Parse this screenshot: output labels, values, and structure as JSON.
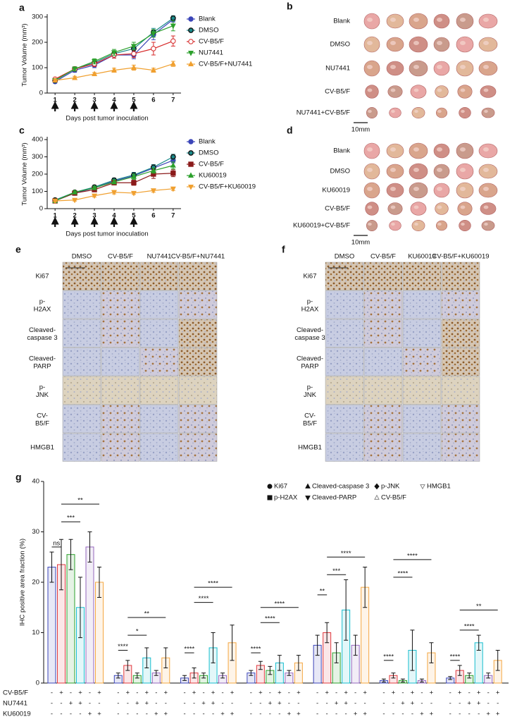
{
  "chart_data": [
    {
      "type": "line",
      "panel": "a",
      "y_label": "Tumor Volume (mm³)",
      "x_label": "Days post tumor inoculation",
      "x": [
        1,
        2,
        3,
        4,
        5,
        6,
        7
      ],
      "xlim": [
        0.6,
        7.4
      ],
      "xticks": [
        1,
        2,
        3,
        4,
        5,
        6,
        7
      ],
      "ylim": [
        0,
        300
      ],
      "yticks": [
        0,
        100,
        200,
        300
      ],
      "series": [
        {
          "name": "Blank",
          "color": "#3b45b8",
          "marker": "circle",
          "values": [
            45,
            90,
            110,
            150,
            150,
            230,
            290
          ],
          "errors": [
            5,
            8,
            10,
            12,
            15,
            20,
            10
          ]
        },
        {
          "name": "DMSO",
          "color": "#1a8a8a",
          "marker": "circle-ring",
          "values": [
            50,
            95,
            120,
            155,
            175,
            240,
            295
          ],
          "errors": [
            5,
            8,
            10,
            12,
            15,
            15,
            10
          ]
        },
        {
          "name": "CV-B5/F",
          "color": "#d62828",
          "marker": "circle-open",
          "values": [
            55,
            95,
            115,
            150,
            155,
            175,
            205
          ],
          "errors": [
            5,
            8,
            10,
            12,
            15,
            25,
            20
          ]
        },
        {
          "name": "NU7441",
          "color": "#2ca02c",
          "marker": "triangle-down",
          "values": [
            50,
            95,
            125,
            160,
            185,
            235,
            265
          ],
          "errors": [
            5,
            8,
            10,
            12,
            15,
            15,
            20
          ]
        },
        {
          "name": "CV-B5/F+NU7441",
          "color": "#f0a030",
          "marker": "triangle",
          "values": [
            50,
            60,
            75,
            90,
            100,
            90,
            115
          ],
          "errors": [
            5,
            6,
            6,
            8,
            10,
            8,
            10
          ]
        }
      ]
    },
    {
      "type": "line",
      "panel": "c",
      "y_label": "Tumor Volume (mm³)",
      "x_label": "Days post tumor inoculation",
      "x": [
        1,
        2,
        3,
        4,
        5,
        6,
        7
      ],
      "xlim": [
        0.6,
        7.4
      ],
      "xticks": [
        1,
        2,
        3,
        4,
        5,
        6,
        7
      ],
      "ylim": [
        0,
        400
      ],
      "yticks": [
        0,
        100,
        200,
        300,
        400
      ],
      "series": [
        {
          "name": "Blank",
          "color": "#3b45b8",
          "marker": "circle",
          "values": [
            45,
            90,
            120,
            160,
            190,
            235,
            280
          ],
          "errors": [
            5,
            8,
            10,
            12,
            15,
            20,
            15
          ]
        },
        {
          "name": "DMSO",
          "color": "#1a8a8a",
          "marker": "circle-ring",
          "values": [
            50,
            95,
            125,
            165,
            195,
            240,
            300
          ],
          "errors": [
            5,
            8,
            10,
            12,
            15,
            15,
            15
          ]
        },
        {
          "name": "CV-B5/F",
          "color": "#8b1a1a",
          "marker": "square",
          "values": [
            45,
            90,
            110,
            150,
            150,
            200,
            205
          ],
          "errors": [
            5,
            8,
            10,
            12,
            15,
            25,
            20
          ]
        },
        {
          "name": "KU60019",
          "color": "#2ca02c",
          "marker": "triangle",
          "values": [
            45,
            95,
            120,
            155,
            185,
            220,
            250
          ],
          "errors": [
            5,
            8,
            10,
            12,
            15,
            15,
            20
          ]
        },
        {
          "name": "CV-B5/F+KU60019",
          "color": "#f0a030",
          "marker": "triangle-down",
          "values": [
            45,
            50,
            75,
            95,
            90,
            105,
            115
          ],
          "errors": [
            5,
            6,
            8,
            10,
            8,
            10,
            10
          ]
        }
      ]
    },
    {
      "type": "grouped_bar",
      "panel": "g",
      "y_label": "IHC positive area fraction (%)",
      "ylim": [
        0,
        40
      ],
      "yticks": [
        0,
        10,
        20,
        30,
        40
      ],
      "bar_colors": [
        "#3b45b8",
        "#e0393e",
        "#2ca02c",
        "#17becf",
        "#9467bd",
        "#f4a742"
      ],
      "conditions": [
        {
          "name": "CV-B5/F",
          "signs": [
            "-",
            "+",
            "-",
            "+",
            "-",
            "+"
          ]
        },
        {
          "name": "NU7441",
          "signs": [
            "-",
            "-",
            "+",
            "+",
            "-",
            "-"
          ]
        },
        {
          "name": "KU60019",
          "signs": [
            "-",
            "-",
            "-",
            "-",
            "+",
            "+"
          ]
        }
      ],
      "groups": [
        {
          "name": "Ki67",
          "marker": "circle",
          "values": [
            23,
            23.5,
            25.5,
            15,
            27,
            20
          ],
          "errors": [
            3,
            5,
            3,
            6,
            3,
            3
          ],
          "brackets": [
            {
              "bars": [
                0,
                1
              ],
              "y": 27,
              "label": "ns"
            },
            {
              "bars": [
                1,
                3
              ],
              "y": 32,
              "label": "***"
            },
            {
              "bars": [
                1,
                5
              ],
              "y": 35.5,
              "label": "**"
            }
          ]
        },
        {
          "name": "p-H2AX",
          "marker": "square",
          "values": [
            1.5,
            3.5,
            1.5,
            5,
            2,
            5
          ],
          "errors": [
            0.5,
            1,
            0.5,
            2,
            0.5,
            2
          ],
          "brackets": [
            {
              "bars": [
                0,
                1
              ],
              "y": 6.5,
              "label": "****"
            },
            {
              "bars": [
                1,
                3
              ],
              "y": 9.5,
              "label": "*"
            },
            {
              "bars": [
                1,
                5
              ],
              "y": 13,
              "label": "**"
            }
          ]
        },
        {
          "name": "Cleaved-caspase 3",
          "marker": "triangle",
          "values": [
            1,
            2,
            1.5,
            7,
            1.5,
            8
          ],
          "errors": [
            0.5,
            1,
            0.5,
            3,
            0.5,
            3.5
          ],
          "brackets": [
            {
              "bars": [
                0,
                1
              ],
              "y": 6,
              "label": "****"
            },
            {
              "bars": [
                1,
                3
              ],
              "y": 16,
              "label": "****"
            },
            {
              "bars": [
                1,
                5
              ],
              "y": 19,
              "label": "****"
            }
          ]
        },
        {
          "name": "Cleaved-PARP",
          "marker": "triangle-down",
          "values": [
            2,
            3.5,
            2.5,
            4,
            2,
            4
          ],
          "errors": [
            0.5,
            0.8,
            0.8,
            1.5,
            0.5,
            1.5
          ],
          "brackets": [
            {
              "bars": [
                0,
                1
              ],
              "y": 6,
              "label": "****"
            },
            {
              "bars": [
                1,
                3
              ],
              "y": 12,
              "label": "****"
            },
            {
              "bars": [
                1,
                5
              ],
              "y": 15,
              "label": "****"
            }
          ]
        },
        {
          "name": "p-JNK",
          "marker": "diamond",
          "values": [
            7.5,
            10,
            6,
            14.5,
            7.5,
            19
          ],
          "errors": [
            2,
            2,
            2,
            6,
            2,
            4
          ],
          "brackets": [
            {
              "bars": [
                0,
                1
              ],
              "y": 17.5,
              "label": "**"
            },
            {
              "bars": [
                1,
                3
              ],
              "y": 21.5,
              "label": "***"
            },
            {
              "bars": [
                1,
                5
              ],
              "y": 25,
              "label": "****"
            }
          ]
        },
        {
          "name": "CV-B5/F",
          "marker": "triangle-open",
          "values": [
            0.5,
            1.5,
            0.5,
            6.5,
            0.5,
            6
          ],
          "errors": [
            0.3,
            0.5,
            0.3,
            4,
            0.3,
            2
          ],
          "brackets": [
            {
              "bars": [
                0,
                1
              ],
              "y": 4.5,
              "label": "****"
            },
            {
              "bars": [
                1,
                3
              ],
              "y": 21,
              "label": "****"
            },
            {
              "bars": [
                1,
                5
              ],
              "y": 24.5,
              "label": "****"
            }
          ]
        },
        {
          "name": "HMGB1",
          "marker": "triangle-down-open",
          "values": [
            1,
            2.5,
            1.5,
            8,
            1.5,
            4.5
          ],
          "errors": [
            0.3,
            1,
            0.5,
            1.5,
            0.5,
            2
          ],
          "brackets": [
            {
              "bars": [
                0,
                1
              ],
              "y": 4.5,
              "label": "****"
            },
            {
              "bars": [
                1,
                3
              ],
              "y": 10.5,
              "label": "****"
            },
            {
              "bars": [
                1,
                5
              ],
              "y": 14.5,
              "label": "**"
            }
          ]
        }
      ]
    }
  ],
  "photo_panels": [
    {
      "panel": "b",
      "rows": [
        "Blank",
        "DMSO",
        "NU7441",
        "CV-B5/F",
        "NU7441+CV-B5/F"
      ],
      "scale_bar": "10mm"
    },
    {
      "panel": "d",
      "rows": [
        "Blank",
        "DMSO",
        "KU60019",
        "CV-B5/F",
        "KU60019+CV-B5/F"
      ],
      "scale_bar": "10mm"
    }
  ],
  "ihc_panels": [
    {
      "panel": "e",
      "columns": [
        "DMSO",
        "CV-B5/F",
        "NU7441",
        "CV-B5/F+NU7441"
      ],
      "rows": [
        "Ki67",
        "p-H2AX",
        "Cleaved-caspase 3",
        "Cleaved-PARP",
        "p-JNK",
        "CV-B5/F",
        "HMGB1"
      ]
    },
    {
      "panel": "f",
      "columns": [
        "DMSO",
        "CV-B5/F",
        "KU60019",
        "CV-B5/F+KU60019"
      ],
      "rows": [
        "Ki67",
        "p-H2AX",
        "Cleaved-caspase 3",
        "Cleaved-PARP",
        "p-JNK",
        "CV-B5/F",
        "HMGB1"
      ]
    }
  ]
}
